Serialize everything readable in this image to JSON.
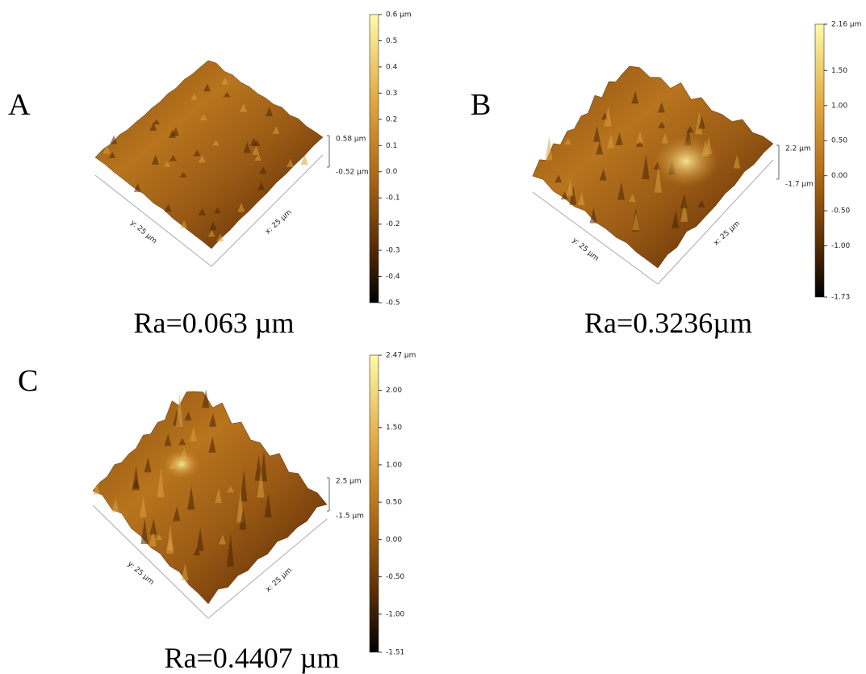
{
  "panels": [
    {
      "label": "A",
      "caption": "Ra=0.063 µm",
      "y_axis": "y: 25 µm",
      "x_axis": "x: 25 µm",
      "z_max": "0.58 µm",
      "z_min": "-0.52 µm",
      "colorbar_ticks": [
        "0.6 µm",
        "0.5",
        "0.4",
        "0.3",
        "0.2",
        "0.1",
        "0.0",
        "-0.1",
        "-0.2",
        "-0.3",
        "-0.4",
        "-0.5"
      ]
    },
    {
      "label": "B",
      "caption": "Ra=0.3236µm",
      "y_axis": "y: 25 µm",
      "x_axis": "x: 25 µm",
      "z_max": "2.2 µm",
      "z_min": "-1.7 µm",
      "colorbar_ticks": [
        "2.16 µm",
        "1.50",
        "1.00",
        "0.50",
        "0.00",
        "-0.50",
        "-1.00",
        "-1.73"
      ]
    },
    {
      "label": "C",
      "caption": "Ra=0.4407 µm",
      "y_axis": "y: 25 µm",
      "x_axis": "x: 25 µm",
      "z_max": "2.5 µm",
      "z_min": "-1.5 µm",
      "colorbar_ticks": [
        "2.47 µm",
        "2.00",
        "1.50",
        "1.00",
        "0.50",
        "0.00",
        "-0.50",
        "-1.00",
        "-1.51"
      ]
    }
  ]
}
